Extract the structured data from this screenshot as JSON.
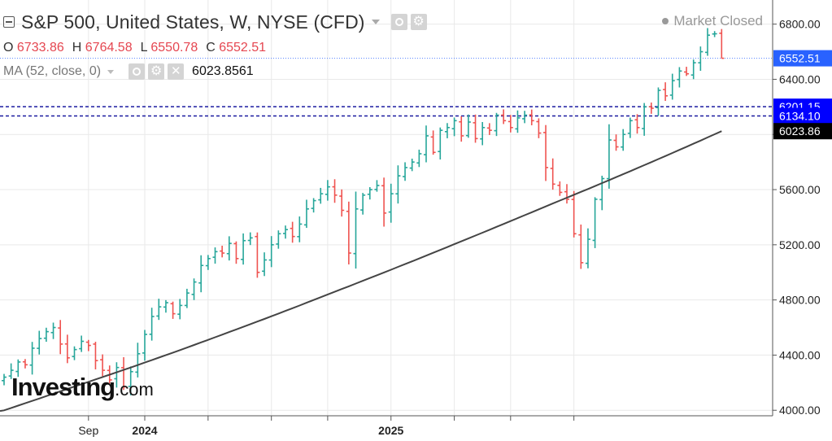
{
  "header": {
    "title": "S&P 500, United States, W, NYSE (CFD)",
    "market_status": "Market Closed",
    "ohlc": [
      {
        "label": "O",
        "value": "6733.86"
      },
      {
        "label": "H",
        "value": "6764.58"
      },
      {
        "label": "L",
        "value": "6550.78"
      },
      {
        "label": "C",
        "value": "6552.51"
      }
    ],
    "indicator": {
      "label": "MA (52, close, 0)",
      "value": "6023.8561"
    }
  },
  "logo": {
    "main": "Investing",
    "suffix": ".com"
  },
  "colors": {
    "up": "#26a69a",
    "down": "#ef5350",
    "ma_line": "#444444",
    "price_tag": "#2962ff",
    "level_tag": "#0000ff",
    "ma_tag": "#000000",
    "grid": "#e9e9e9",
    "level_line": "#1a1aa0"
  },
  "chart_data": {
    "type": "ohlc",
    "symbol": "S&P 500",
    "interval": "W",
    "y_axis": {
      "ticks": [
        "6800.00",
        "6400.00",
        "6000.00",
        "5600.00",
        "5200.00",
        "4800.00",
        "4400.00",
        "4000.00"
      ],
      "range": [
        3960,
        6975
      ]
    },
    "x_axis": {
      "ticks": [
        {
          "label": "Sep",
          "bold": false,
          "bar_index": 12
        },
        {
          "label": "2024",
          "bold": true,
          "bar_index": 20
        },
        {
          "label": "",
          "bold": false,
          "bar_index": 29
        },
        {
          "label": "",
          "bold": false,
          "bar_index": 38
        },
        {
          "label": "",
          "bold": false,
          "bar_index": 46
        },
        {
          "label": "2025",
          "bold": true,
          "bar_index": 55
        },
        {
          "label": "",
          "bold": false,
          "bar_index": 64
        },
        {
          "label": "",
          "bold": false,
          "bar_index": 72
        },
        {
          "label": "",
          "bold": false,
          "bar_index": 81
        }
      ]
    },
    "price_levels": [
      {
        "value": 6201.15,
        "label": "6201.15",
        "style": "dashed"
      },
      {
        "value": 6134.1,
        "label": "6134.10",
        "style": "dashed"
      }
    ],
    "last_price": {
      "value": 6552.51,
      "label": "6552.51"
    },
    "ma_last": {
      "value": 6023.86,
      "label": "6023.86"
    },
    "closes": [
      4240,
      4290,
      4350,
      4330,
      4450,
      4520,
      4570,
      4600,
      4480,
      4380,
      4440,
      4500,
      4470,
      4360,
      4290,
      4220,
      4310,
      4170,
      4280,
      4410,
      4550,
      4680,
      4750,
      4780,
      4700,
      4760,
      4850,
      4930,
      5050,
      5100,
      5150,
      5140,
      5210,
      5100,
      5230,
      5250,
      5000,
      5090,
      5200,
      5280,
      5310,
      5260,
      5350,
      5460,
      5520,
      5570,
      5620,
      5560,
      5450,
      5140,
      5460,
      5560,
      5600,
      5630,
      5430,
      5570,
      5700,
      5760,
      5800,
      5860,
      5990,
      5870,
      6030,
      6050,
      6100,
      5990,
      6090,
      5970,
      6050,
      6030,
      6140,
      6100,
      6050,
      6120,
      6140,
      6100,
      6010,
      5760,
      5640,
      5580,
      5530,
      5280,
      5070,
      5240,
      5530,
      5680,
      5960,
      5910,
      6000,
      6100,
      6050,
      6200,
      6190,
      6320,
      6280,
      6390,
      6460,
      6440,
      6520,
      6600,
      6720,
      6730,
      6552.51
    ],
    "ma_start": 3995,
    "ma_end": 6023.86
  }
}
